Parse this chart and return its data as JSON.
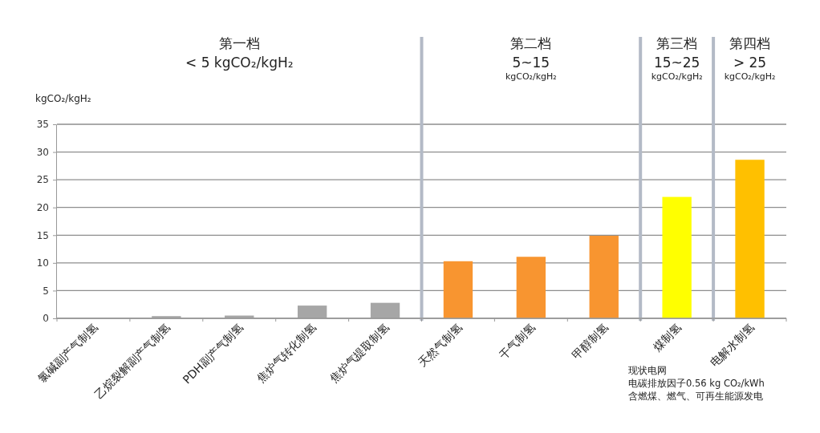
{
  "chart_data": {
    "type": "bar",
    "ylabel": "kgCO₂/kgH₂",
    "categories": [
      "氯碱副产气制氢",
      "乙烷裂解副产气制氢",
      "PDH副产气制氢",
      "焦炉气转化制氢",
      "焦炉气提取制氢",
      "天然气制氢",
      "干气制氢",
      "甲醇制氢",
      "煤制氢",
      "电解水制氢"
    ],
    "values": [
      0,
      0.4,
      0.5,
      2.3,
      2.8,
      10.3,
      11.1,
      14.9,
      21.9,
      28.6
    ],
    "colors": [
      "#a6a6a6",
      "#a6a6a6",
      "#a6a6a6",
      "#a6a6a6",
      "#a6a6a6",
      "#f89530",
      "#f89530",
      "#f89530",
      "#ffff00",
      "#ffc000"
    ],
    "ylim": [
      0,
      35
    ],
    "yticks": [
      0,
      5,
      10,
      15,
      20,
      25,
      30,
      35
    ],
    "grid": "y",
    "ref_lines": [
      {
        "axis": "x",
        "value": "天然气制氢",
        "color": "#b3bac6"
      },
      {
        "axis": "x",
        "value": "煤制氢",
        "color": "#b3bac6"
      },
      {
        "axis": "x",
        "value": "电解水制氢",
        "color": "#b3bac6"
      }
    ],
    "annotations": [
      "第一档\n< 5 kgCO₂/kgH₂",
      "第二档\n5~15\nkgCO₂/kgH₂",
      "第三档\n15~25\nkgCO₂/kgH₂",
      "第四档\n> 25\nkgCO₂/kgH₂",
      "现状电网",
      "电碳排放因子0.56 kg CO₂/kWh",
      "含燃煤、燃气、可再生能源发电"
    ]
  }
}
